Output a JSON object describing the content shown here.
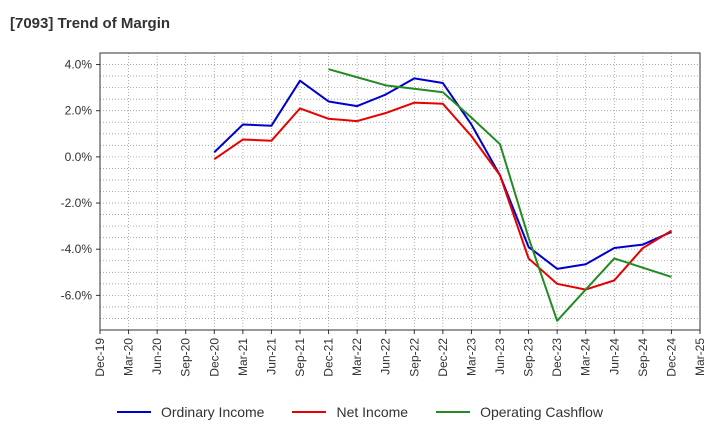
{
  "title": "[7093]  Trend of Margin",
  "chart_data": {
    "type": "line",
    "title": "[7093]  Trend of Margin",
    "xlabel": "",
    "ylabel": "",
    "categories": [
      "Dec-19",
      "Mar-20",
      "Jun-20",
      "Sep-20",
      "Dec-20",
      "Mar-21",
      "Jun-21",
      "Sep-21",
      "Dec-21",
      "Mar-22",
      "Jun-22",
      "Sep-22",
      "Dec-22",
      "Mar-23",
      "Jun-23",
      "Sep-23",
      "Dec-23",
      "Mar-24",
      "Jun-24",
      "Sep-24",
      "Dec-24",
      "Mar-25"
    ],
    "yticks": [
      "4.0%",
      "2.0%",
      "0.0%",
      "-2.0%",
      "-4.0%",
      "-6.0%"
    ],
    "ylim": [
      -7.5,
      4.5
    ],
    "grid": true,
    "legend_position": "bottom",
    "series": [
      {
        "name": "Ordinary Income",
        "color": "#0000cc",
        "values": [
          null,
          null,
          null,
          null,
          0.2,
          1.4,
          1.35,
          3.3,
          2.4,
          2.2,
          2.7,
          3.4,
          3.2,
          1.4,
          -0.8,
          -3.9,
          -4.85,
          -4.65,
          -3.95,
          -3.8,
          -3.25,
          null
        ]
      },
      {
        "name": "Net Income",
        "color": "#e60000",
        "values": [
          null,
          null,
          null,
          null,
          -0.1,
          0.75,
          0.7,
          2.1,
          1.65,
          1.55,
          1.9,
          2.35,
          2.3,
          0.9,
          -0.8,
          -4.4,
          -5.5,
          -5.75,
          -5.35,
          -3.95,
          -3.2,
          null
        ]
      },
      {
        "name": "Operating Cashflow",
        "color": "#228b22",
        "values": [
          null,
          null,
          null,
          null,
          null,
          null,
          null,
          null,
          3.8,
          3.45,
          3.1,
          2.95,
          2.8,
          1.7,
          0.55,
          -3.5,
          -7.1,
          -5.75,
          -4.4,
          -4.8,
          -5.2,
          null
        ]
      }
    ]
  }
}
